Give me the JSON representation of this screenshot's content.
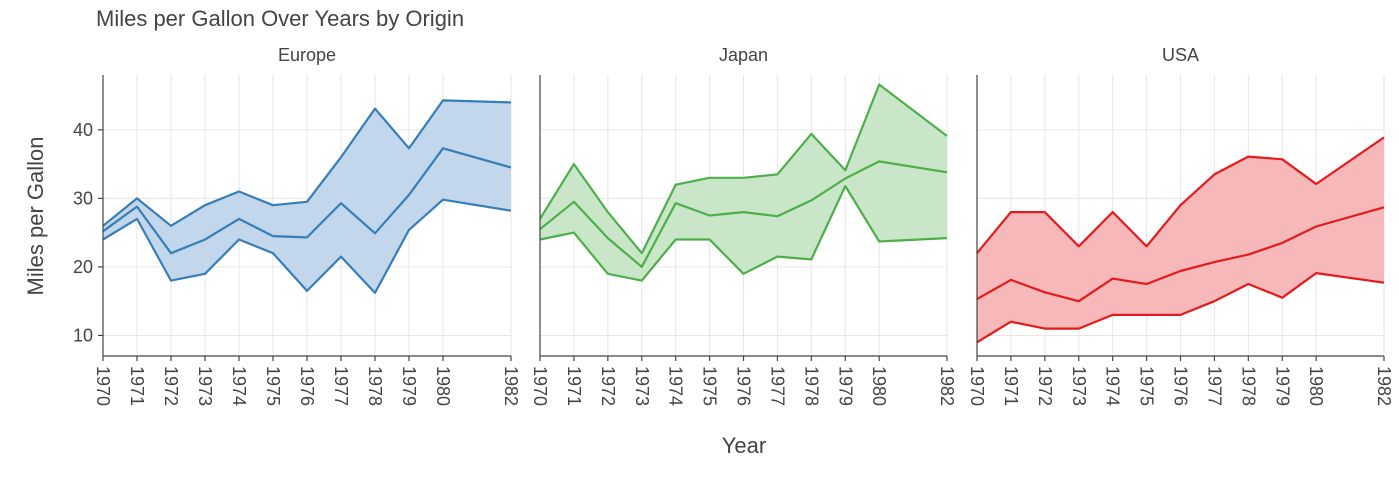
{
  "chart_data": {
    "type": "area",
    "title": "Miles per Gallon Over Years by Origin",
    "xlabel": "Year",
    "ylabel": "Miles per Gallon",
    "ylim": [
      7,
      48
    ],
    "yticks": [
      10,
      20,
      30,
      40
    ],
    "grid": true,
    "x": [
      1970,
      1971,
      1972,
      1973,
      1974,
      1975,
      1976,
      1977,
      1978,
      1979,
      1980,
      1982
    ],
    "facets": [
      {
        "name": "Europe",
        "color": "#377eb8",
        "fill": "#c2d7eb",
        "max": [
          26,
          30,
          26,
          29,
          31,
          29,
          29.5,
          36,
          43.1,
          37.3,
          44.3,
          44
        ],
        "mean": [
          25.2,
          28.8,
          22,
          24,
          27,
          24.5,
          24.3,
          29.3,
          24.9,
          30.5,
          37.3,
          34.5
        ],
        "min": [
          24,
          27,
          18,
          19,
          24,
          22,
          16.5,
          21.5,
          16.2,
          25.4,
          29.8,
          28.2
        ]
      },
      {
        "name": "Japan",
        "color": "#4daf4a",
        "fill": "#c9e7c8",
        "max": [
          27,
          35,
          28,
          22,
          32,
          33,
          33,
          33.5,
          39.4,
          34.1,
          46.6,
          39.1
        ],
        "mean": [
          25.5,
          29.5,
          24.2,
          20,
          29.3,
          27.5,
          28,
          27.4,
          29.7,
          32.9,
          35.4,
          33.8
        ],
        "min": [
          24,
          25,
          19,
          18,
          24,
          24,
          19,
          21.5,
          21.1,
          31.8,
          23.7,
          24.2
        ]
      },
      {
        "name": "USA",
        "color": "#e41a1c",
        "fill": "#f6b8b9",
        "max": [
          22,
          28,
          28,
          23,
          28,
          23,
          29,
          33.5,
          36.1,
          35.7,
          32.1,
          38.9
        ],
        "mean": [
          15.3,
          18.1,
          16.3,
          15,
          18.3,
          17.5,
          19.4,
          20.7,
          21.8,
          23.5,
          25.9,
          28.7
        ],
        "min": [
          9,
          12,
          11,
          11,
          13,
          13,
          13,
          15,
          17.5,
          15.5,
          19.1,
          17.7
        ]
      }
    ]
  }
}
